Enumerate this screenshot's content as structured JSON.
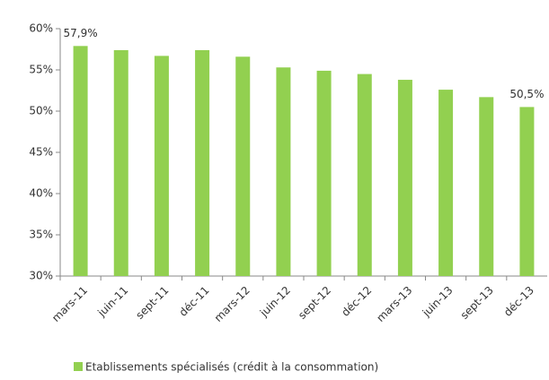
{
  "chart_data": {
    "type": "bar",
    "categories": [
      "mars-11",
      "juin-11",
      "sept-11",
      "déc-11",
      "mars-12",
      "juin-12",
      "sept-12",
      "déc-12",
      "mars-13",
      "juin-13",
      "sept-13",
      "déc-13"
    ],
    "series": [
      {
        "name": "Etablissements spécialisés (crédit à la consommation)",
        "color": "#92d050",
        "values": [
          57.9,
          57.4,
          56.7,
          57.4,
          56.6,
          55.3,
          54.9,
          54.5,
          53.8,
          52.6,
          51.7,
          50.5
        ],
        "value_labels": [
          "57,9%",
          null,
          null,
          null,
          null,
          null,
          null,
          null,
          null,
          null,
          null,
          "50,5%"
        ]
      }
    ],
    "ylim": [
      30,
      60
    ],
    "yticks": [
      {
        "value": 30,
        "label": "30%"
      },
      {
        "value": 35,
        "label": "35%"
      },
      {
        "value": 40,
        "label": "40%"
      },
      {
        "value": 45,
        "label": "45%"
      },
      {
        "value": 50,
        "label": "50%"
      },
      {
        "value": 55,
        "label": "55%"
      },
      {
        "value": 60,
        "label": "60%"
      }
    ],
    "legend": "bottom"
  }
}
